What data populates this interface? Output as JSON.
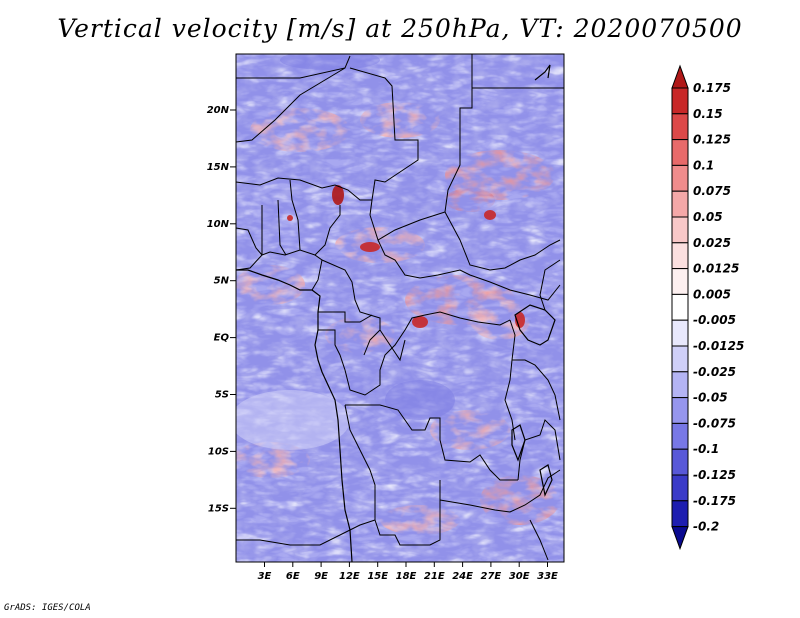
{
  "title": "Vertical velocity [m/s] at 250hPa, VT: 2020070500",
  "credit": "GrADS: IGES/COLA",
  "axes": {
    "lat_labels": [
      "20N",
      "15N",
      "10N",
      "5N",
      "EQ",
      "5S",
      "10S",
      "15S"
    ],
    "lon_labels": [
      "3E",
      "6E",
      "9E",
      "12E",
      "15E",
      "18E",
      "21E",
      "24E",
      "27E",
      "30E",
      "33E"
    ]
  },
  "colorbar": {
    "levels": [
      "0.175",
      "0.15",
      "0.125",
      "0.1",
      "0.075",
      "0.05",
      "0.025",
      "0.0125",
      "0.005",
      "-0.005",
      "-0.0125",
      "-0.025",
      "-0.05",
      "-0.075",
      "-0.1",
      "-0.125",
      "-0.175",
      "-0.2"
    ],
    "colors": [
      "#b01818",
      "#c82828",
      "#dc4848",
      "#e86a6a",
      "#f08c8c",
      "#f4a8a8",
      "#f8c8c8",
      "#fbe0e0",
      "#fdf0f0",
      "#ffffff",
      "#e8e8fc",
      "#d0d0f8",
      "#b4b4f4",
      "#9696ee",
      "#7878e6",
      "#5858d8",
      "#3a3ac8",
      "#1e1eb0",
      "#0a0a90"
    ]
  },
  "colors": {
    "background_field": "#a8a8f0",
    "positive_accent": "#e86a6a",
    "negative_accent": "#5858d8"
  }
}
